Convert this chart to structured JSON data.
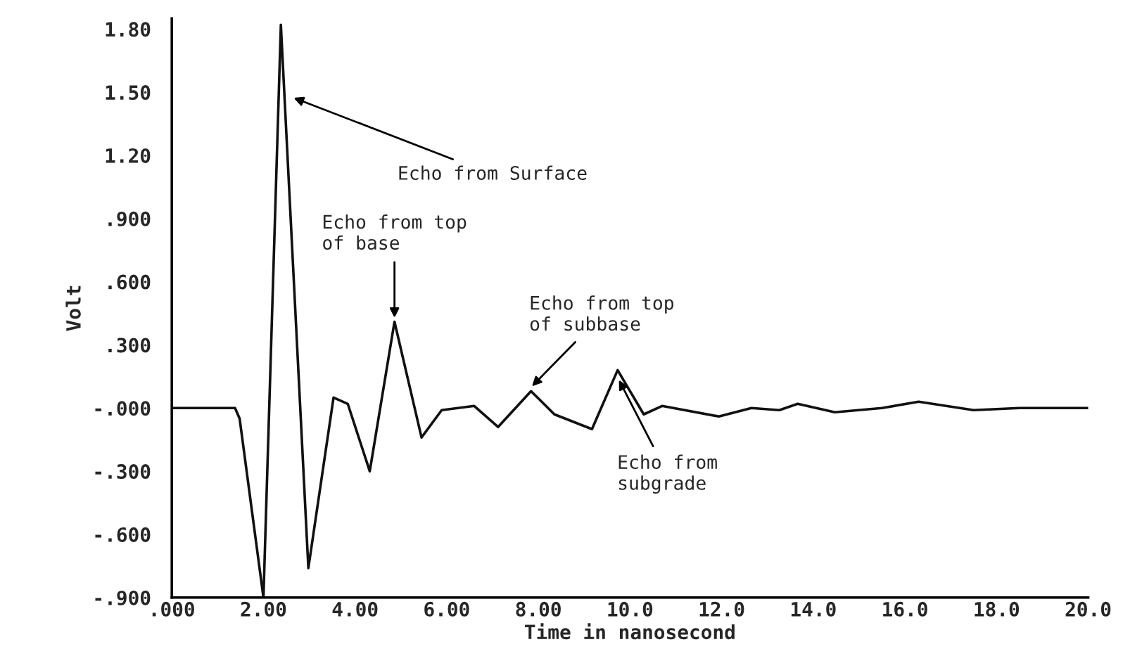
{
  "chart_data": {
    "type": "line",
    "xlabel": "Time in nanosecond",
    "ylabel": "Volt",
    "xlim": [
      0,
      20
    ],
    "ylim": [
      -0.9,
      1.85
    ],
    "xticks": [
      {
        "value": 0,
        "label": ".000"
      },
      {
        "value": 2,
        "label": "2.00"
      },
      {
        "value": 4,
        "label": "4.00"
      },
      {
        "value": 6,
        "label": "6.00"
      },
      {
        "value": 8,
        "label": "8.00"
      },
      {
        "value": 10,
        "label": "10.0"
      },
      {
        "value": 12,
        "label": "12.0"
      },
      {
        "value": 14,
        "label": "14.0"
      },
      {
        "value": 16,
        "label": "16.0"
      },
      {
        "value": 18,
        "label": "18.0"
      },
      {
        "value": 20,
        "label": "20.0"
      }
    ],
    "yticks": [
      {
        "value": 1.8,
        "label": "1.80"
      },
      {
        "value": 1.5,
        "label": "1.50"
      },
      {
        "value": 1.2,
        "label": "1.20"
      },
      {
        "value": 0.9,
        "label": ".900"
      },
      {
        "value": 0.6,
        "label": ".600"
      },
      {
        "value": 0.3,
        "label": ".300"
      },
      {
        "value": 0,
        "label": "-.000"
      },
      {
        "value": -0.3,
        "label": "-.300"
      },
      {
        "value": -0.6,
        "label": "-.600"
      },
      {
        "value": -0.9,
        "label": "-.900"
      }
    ],
    "grid": false,
    "marker": "none",
    "line_style": "solid",
    "series": [
      {
        "color": "#111111",
        "x": [
          0,
          1.38,
          1.48,
          2.0,
          2.38,
          2.98,
          3.53,
          3.84,
          4.32,
          4.86,
          5.45,
          5.89,
          6.6,
          7.12,
          7.84,
          8.35,
          9.17,
          9.73,
          10.3,
          10.7,
          11.94,
          12.65,
          13.26,
          13.66,
          14.47,
          15.5,
          16.3,
          17.5,
          18.5,
          19.2,
          20.0
        ],
        "values": [
          0,
          0,
          -0.05,
          -0.9,
          1.82,
          -0.76,
          0.05,
          0.02,
          -0.3,
          0.41,
          -0.14,
          -0.01,
          0.01,
          -0.09,
          0.08,
          -0.03,
          -0.1,
          0.18,
          -0.03,
          0.01,
          -0.04,
          0.0,
          -0.01,
          0.02,
          -0.02,
          0.0,
          0.03,
          -0.01,
          0.0,
          0.0,
          0.0
        ]
      }
    ],
    "annotations": [
      {
        "text": "Echo from Surface",
        "x": 2.58,
        "y": 1.48
      },
      {
        "text": "Echo from top\nof base",
        "x": 4.86,
        "y": 0.41
      },
      {
        "text": "Echo from top\nof subbase",
        "x": 7.8,
        "y": 0.09
      },
      {
        "text": "Echo from\nsubgrade",
        "x": 9.72,
        "y": 0.15
      }
    ]
  }
}
